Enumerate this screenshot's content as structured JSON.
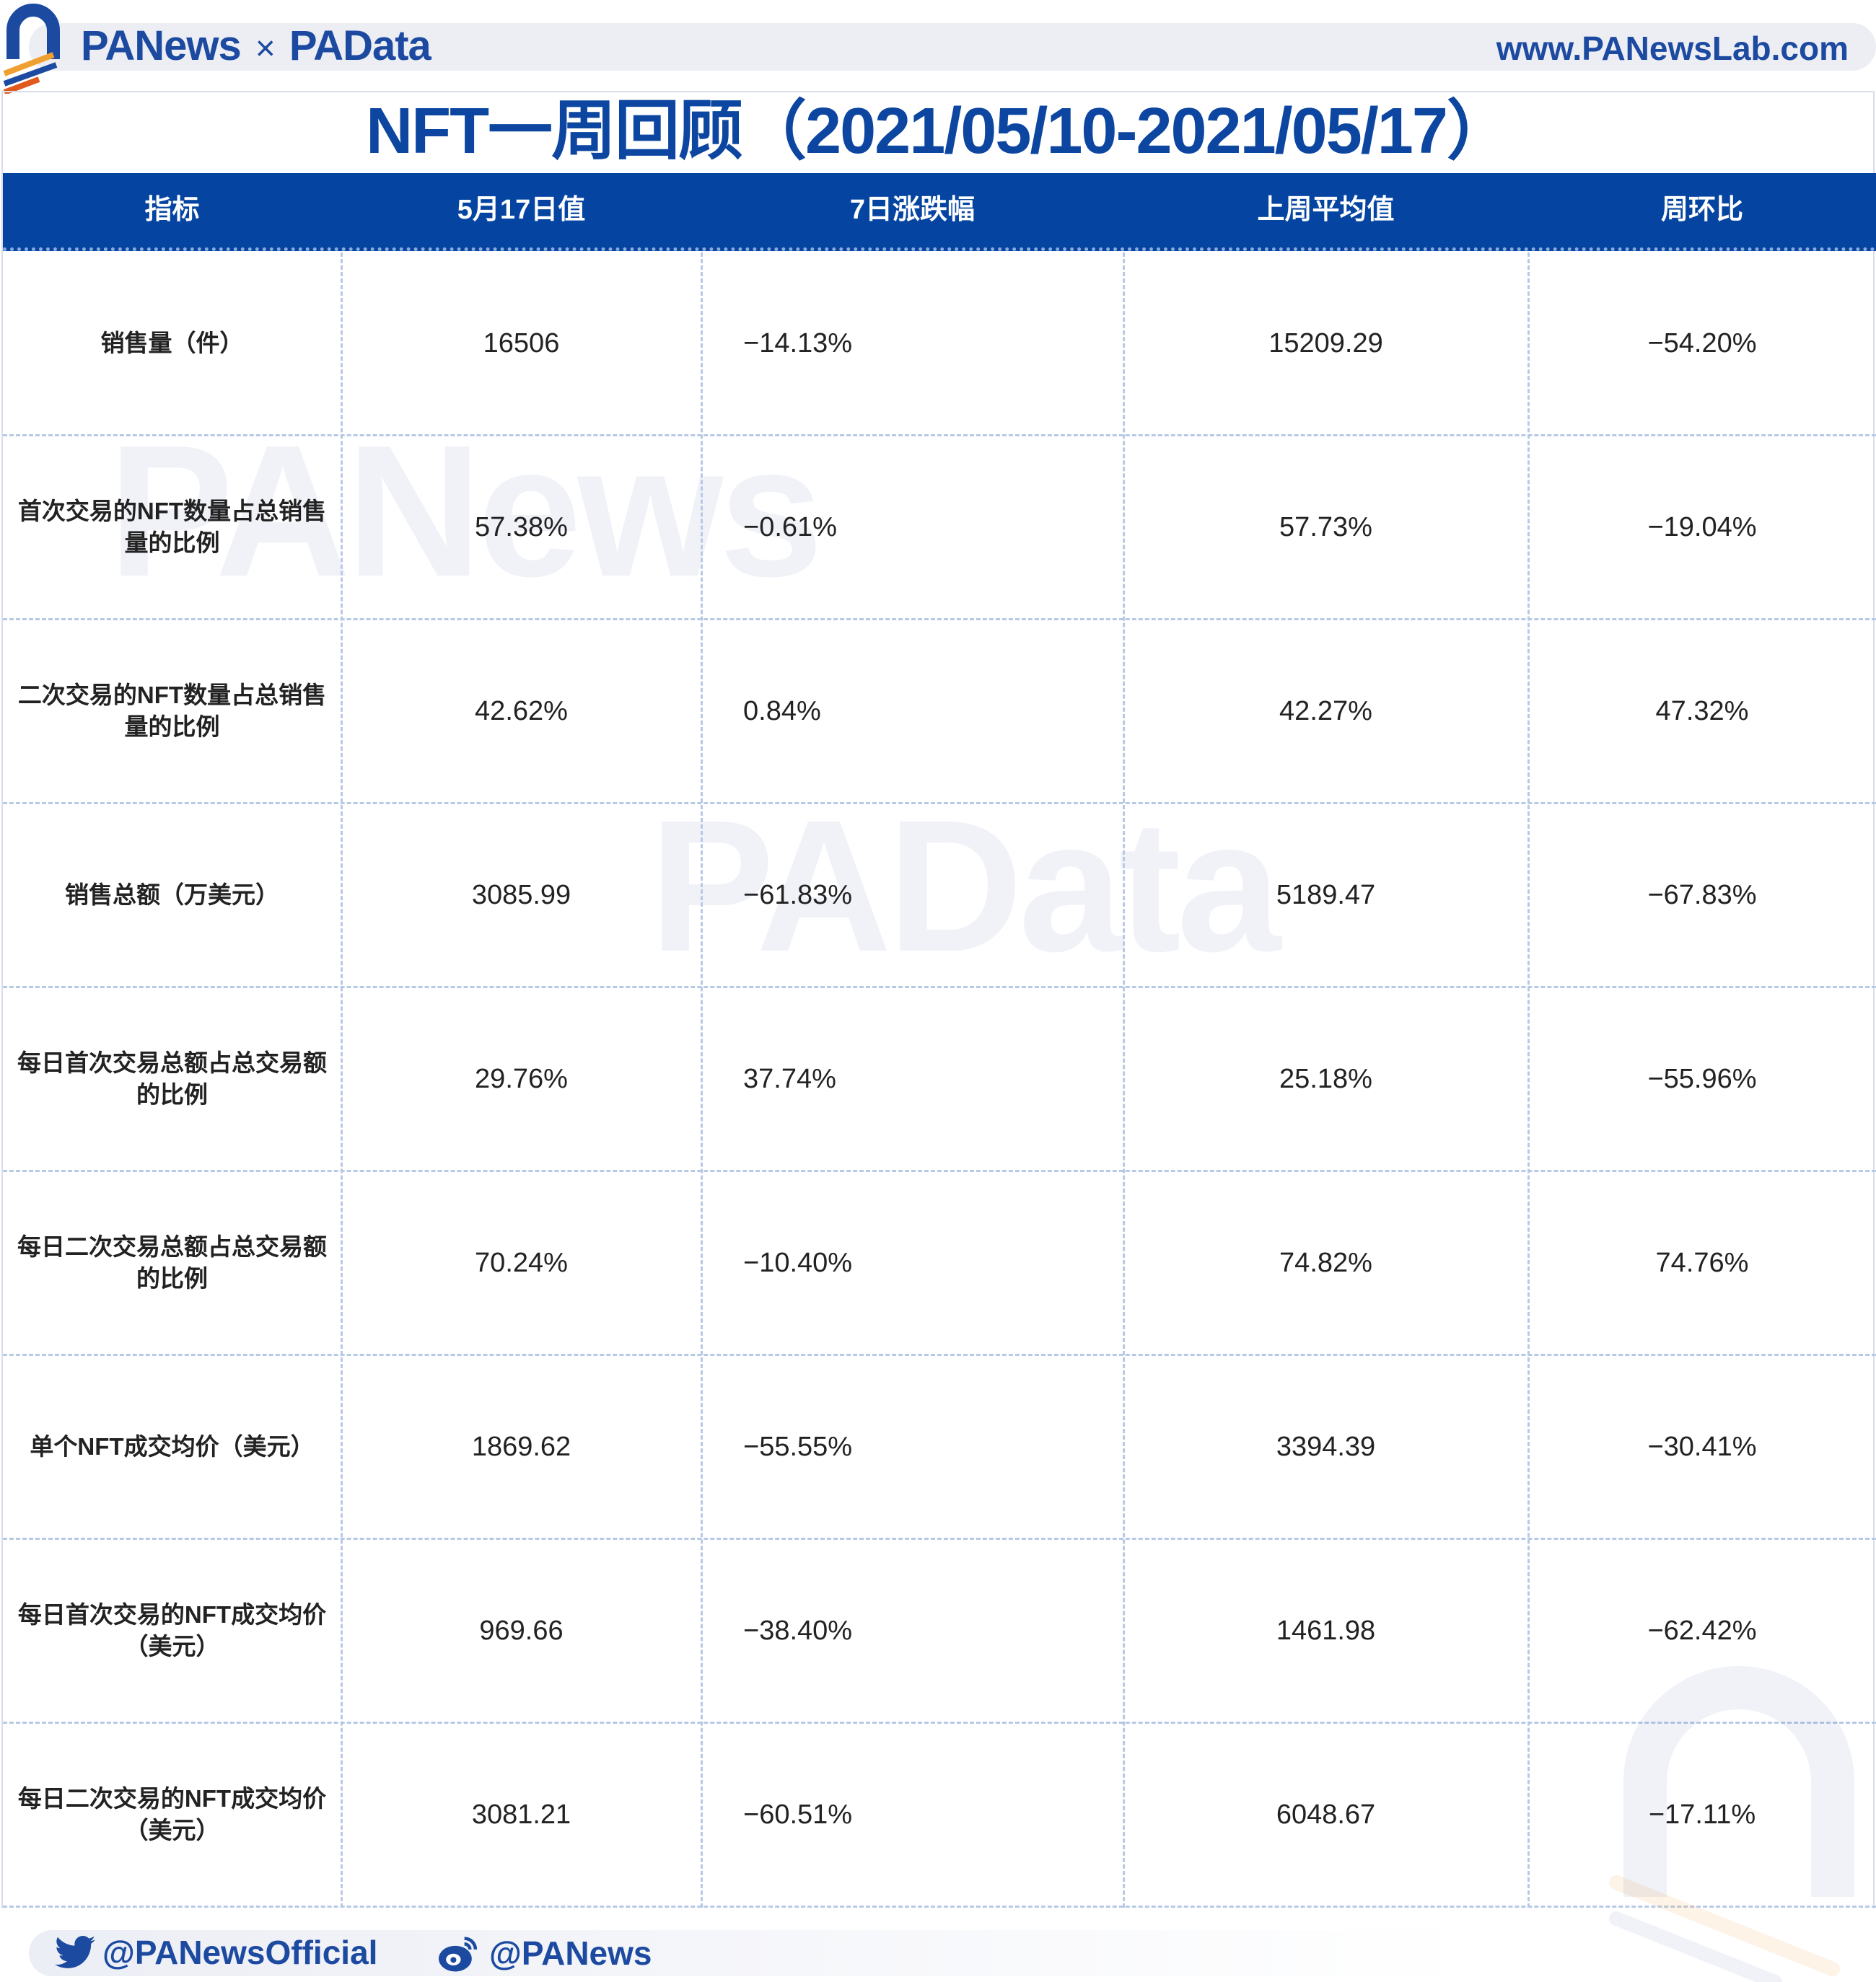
{
  "header": {
    "brand_left": "PANews",
    "brand_sep": "×",
    "brand_right": "PAData",
    "website": "www.PANewsLab.com"
  },
  "title": "NFT一周回顾（2021/05/10-2021/05/17）",
  "watermarks": [
    "PANews",
    "PAData"
  ],
  "colors": {
    "primary": "#0545a1",
    "accent": "#f0a030",
    "grid": "#b8c9e6"
  },
  "table": {
    "columns": [
      "指标",
      "5月17日值",
      "7日涨跌幅",
      "上周平均值",
      "周环比"
    ],
    "rows": [
      {
        "metric": "销售量（件）",
        "value": "16506",
        "change7d": "−14.13%",
        "last_week_avg": "15209.29",
        "wow": "−54.20%"
      },
      {
        "metric": "首次交易的NFT数量占总销售量的比例",
        "value": "57.38%",
        "change7d": "−0.61%",
        "last_week_avg": "57.73%",
        "wow": "−19.04%"
      },
      {
        "metric": "二次交易的NFT数量占总销售量的比例",
        "value": "42.62%",
        "change7d": "0.84%",
        "last_week_avg": "42.27%",
        "wow": "47.32%"
      },
      {
        "metric": "销售总额（万美元）",
        "value": "3085.99",
        "change7d": "−61.83%",
        "last_week_avg": "5189.47",
        "wow": "−67.83%"
      },
      {
        "metric": "每日首次交易总额占总交易额的比例",
        "value": "29.76%",
        "change7d": "37.74%",
        "last_week_avg": "25.18%",
        "wow": "−55.96%"
      },
      {
        "metric": "每日二次交易总额占总交易额的比例",
        "value": "70.24%",
        "change7d": "−10.40%",
        "last_week_avg": "74.82%",
        "wow": "74.76%"
      },
      {
        "metric": "单个NFT成交均价（美元）",
        "value": "1869.62",
        "change7d": "−55.55%",
        "last_week_avg": "3394.39",
        "wow": "−30.41%"
      },
      {
        "metric": "每日首次交易的NFT成交均价（美元）",
        "value": "969.66",
        "change7d": "−38.40%",
        "last_week_avg": "1461.98",
        "wow": "−62.42%"
      },
      {
        "metric": "每日二次交易的NFT成交均价（美元）",
        "value": "3081.21",
        "change7d": "−60.51%",
        "last_week_avg": "6048.67",
        "wow": "−17.11%"
      }
    ]
  },
  "footer": {
    "twitter": {
      "icon": "twitter-icon",
      "handle": "@PANewsOfficial"
    },
    "weibo": {
      "icon": "weibo-icon",
      "handle": "@PANews"
    }
  }
}
